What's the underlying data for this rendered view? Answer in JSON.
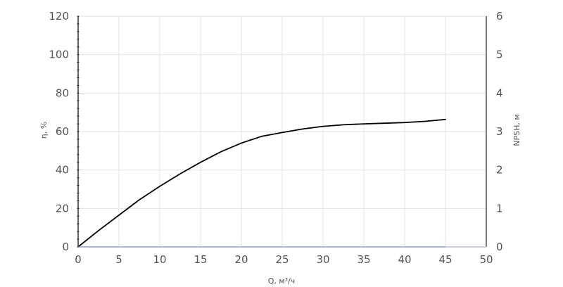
{
  "chart_data": {
    "type": "line",
    "xlabel": "Q, м³/ч",
    "ylabel_left": "η, %",
    "ylabel_right": "NPSH, м",
    "xlim": [
      0,
      50
    ],
    "ylim_left": [
      0,
      120
    ],
    "ylim_right": [
      0,
      6
    ],
    "xticks": [
      "0",
      "5",
      "10",
      "15",
      "20",
      "25",
      "30",
      "35",
      "40",
      "45",
      "50"
    ],
    "yticks_left": [
      "0",
      "20",
      "40",
      "60",
      "80",
      "100",
      "120"
    ],
    "yticks_right": [
      "0",
      "1",
      "2",
      "3",
      "4",
      "5",
      "6"
    ],
    "grid": true,
    "legend": "none",
    "series": [
      {
        "axis": "left",
        "color": "#000000",
        "x": [
          0,
          2.5,
          5,
          7.5,
          10,
          12.5,
          15,
          17.5,
          20,
          22.5,
          25,
          27.5,
          30,
          32.5,
          35,
          37.5,
          40,
          42.5,
          45
        ],
        "y": [
          0,
          8.5,
          16.5,
          24.5,
          31.5,
          38,
          44,
          49.5,
          54,
          57.5,
          59.5,
          61.3,
          62.7,
          63.5,
          64,
          64.3,
          64.7,
          65.3,
          66.3
        ]
      },
      {
        "axis": "right",
        "color": "#7b8fb8",
        "x": [
          0,
          45
        ],
        "y": [
          0,
          0
        ]
      }
    ]
  }
}
